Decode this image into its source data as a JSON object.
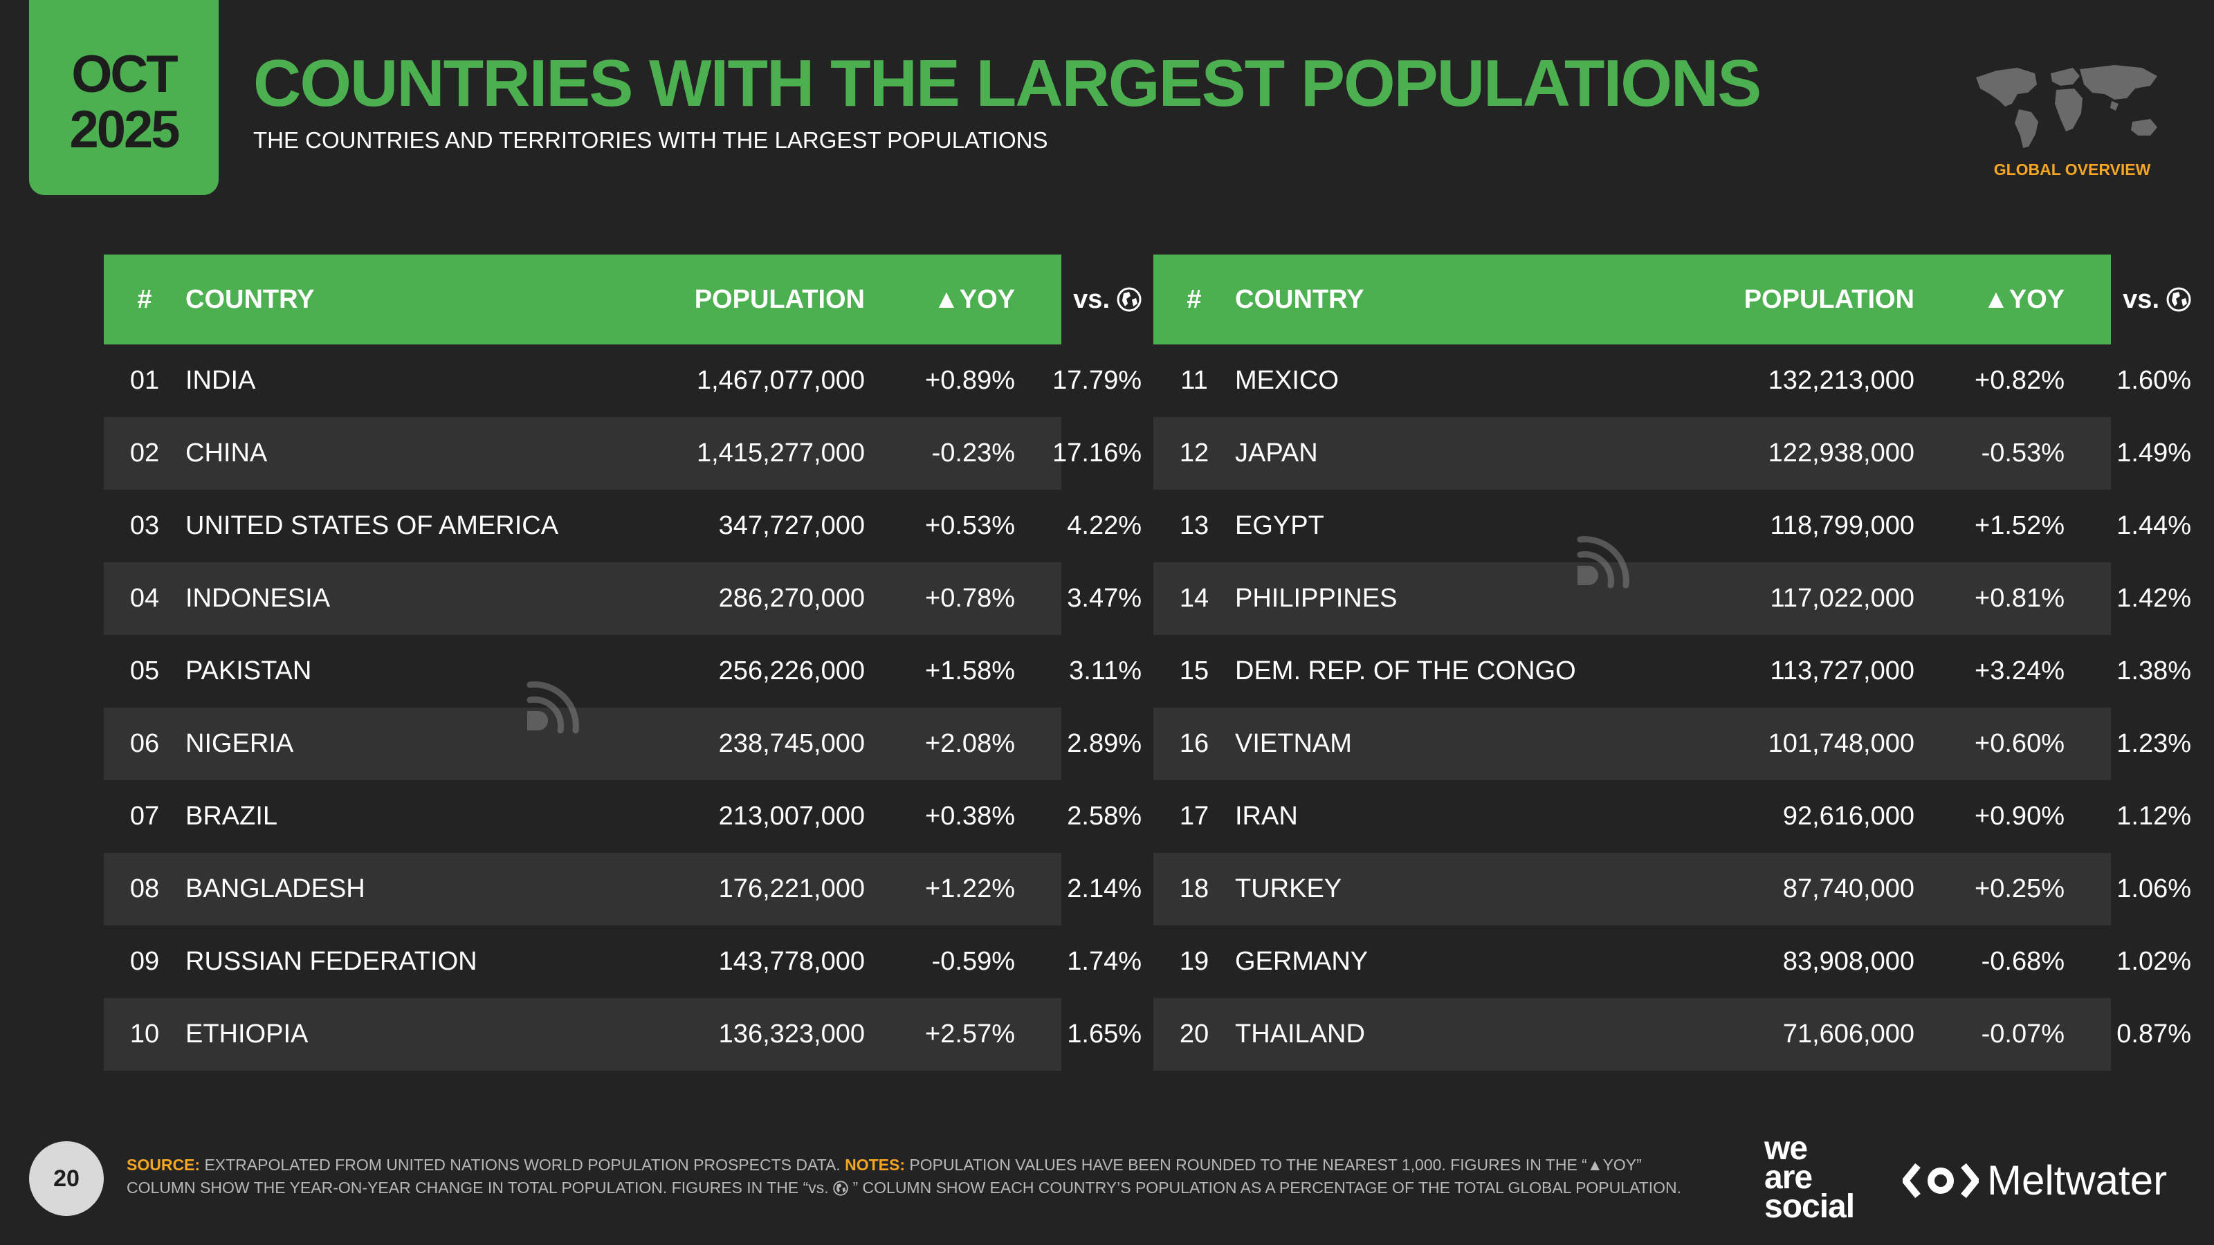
{
  "header": {
    "month": "OCT",
    "year": "2025",
    "title": "COUNTRIES WITH THE LARGEST POPULATIONS",
    "subtitle": "THE COUNTRIES AND TERRITORIES WITH THE LARGEST POPULATIONS",
    "overview_label": "GLOBAL OVERVIEW"
  },
  "table_headers": {
    "num": "#",
    "country": "COUNTRY",
    "population": "POPULATION",
    "yoy": "▲YOY",
    "vs": "vs."
  },
  "left_rows": [
    {
      "num": "01",
      "country": "INDIA",
      "population": "1,467,077,000",
      "yoy": "+0.89%",
      "vs": "17.79%"
    },
    {
      "num": "02",
      "country": "CHINA",
      "population": "1,415,277,000",
      "yoy": "-0.23%",
      "vs": "17.16%"
    },
    {
      "num": "03",
      "country": "UNITED STATES OF AMERICA",
      "population": "347,727,000",
      "yoy": "+0.53%",
      "vs": "4.22%"
    },
    {
      "num": "04",
      "country": "INDONESIA",
      "population": "286,270,000",
      "yoy": "+0.78%",
      "vs": "3.47%"
    },
    {
      "num": "05",
      "country": "PAKISTAN",
      "population": "256,226,000",
      "yoy": "+1.58%",
      "vs": "3.11%"
    },
    {
      "num": "06",
      "country": "NIGERIA",
      "population": "238,745,000",
      "yoy": "+2.08%",
      "vs": "2.89%"
    },
    {
      "num": "07",
      "country": "BRAZIL",
      "population": "213,007,000",
      "yoy": "+0.38%",
      "vs": "2.58%"
    },
    {
      "num": "08",
      "country": "BANGLADESH",
      "population": "176,221,000",
      "yoy": "+1.22%",
      "vs": "2.14%"
    },
    {
      "num": "09",
      "country": "RUSSIAN FEDERATION",
      "population": "143,778,000",
      "yoy": "-0.59%",
      "vs": "1.74%"
    },
    {
      "num": "10",
      "country": "ETHIOPIA",
      "population": "136,323,000",
      "yoy": "+2.57%",
      "vs": "1.65%"
    }
  ],
  "right_rows": [
    {
      "num": "11",
      "country": "MEXICO",
      "population": "132,213,000",
      "yoy": "+0.82%",
      "vs": "1.60%"
    },
    {
      "num": "12",
      "country": "JAPAN",
      "population": "122,938,000",
      "yoy": "-0.53%",
      "vs": "1.49%"
    },
    {
      "num": "13",
      "country": "EGYPT",
      "population": "118,799,000",
      "yoy": "+1.52%",
      "vs": "1.44%"
    },
    {
      "num": "14",
      "country": "PHILIPPINES",
      "population": "117,022,000",
      "yoy": "+0.81%",
      "vs": "1.42%"
    },
    {
      "num": "15",
      "country": "DEM. REP. OF THE CONGO",
      "population": "113,727,000",
      "yoy": "+3.24%",
      "vs": "1.38%"
    },
    {
      "num": "16",
      "country": "VIETNAM",
      "population": "101,748,000",
      "yoy": "+0.60%",
      "vs": "1.23%"
    },
    {
      "num": "17",
      "country": "IRAN",
      "population": "92,616,000",
      "yoy": "+0.90%",
      "vs": "1.12%"
    },
    {
      "num": "18",
      "country": "TURKEY",
      "population": "87,740,000",
      "yoy": "+0.25%",
      "vs": "1.06%"
    },
    {
      "num": "19",
      "country": "GERMANY",
      "population": "83,908,000",
      "yoy": "-0.68%",
      "vs": "1.02%"
    },
    {
      "num": "20",
      "country": "THAILAND",
      "population": "71,606,000",
      "yoy": "-0.07%",
      "vs": "0.87%"
    }
  ],
  "footer": {
    "page_number": "20",
    "source_label": "SOURCE:",
    "source_text": "EXTRAPOLATED FROM UNITED NATIONS WORLD POPULATION PROSPECTS DATA.",
    "notes_label": "NOTES:",
    "notes_text_1": "POPULATION VALUES HAVE BEEN ROUNDED TO THE NEAREST 1,000. FIGURES IN THE “▲YOY” COLUMN SHOW THE YEAR-ON-YEAR CHANGE IN TOTAL POPULATION. FIGURES IN THE “vs.",
    "notes_text_2": "” COLUMN SHOW EACH COUNTRY’S POPULATION AS A PERCENTAGE OF THE TOTAL GLOBAL POPULATION."
  },
  "brands": {
    "was_line1": "we",
    "was_line2": "are",
    "was_line3": "social",
    "meltwater": "Meltwater"
  },
  "icons": {
    "globe": "globe-icon",
    "world_map": "world-map-icon",
    "watermark": "datareportal-watermark-icon",
    "meltwater_logo": "meltwater-logo-icon"
  },
  "colors": {
    "accent_green": "#4caf50",
    "background": "#232323",
    "row_alt": "#333333",
    "notes_orange": "#f5a623"
  }
}
